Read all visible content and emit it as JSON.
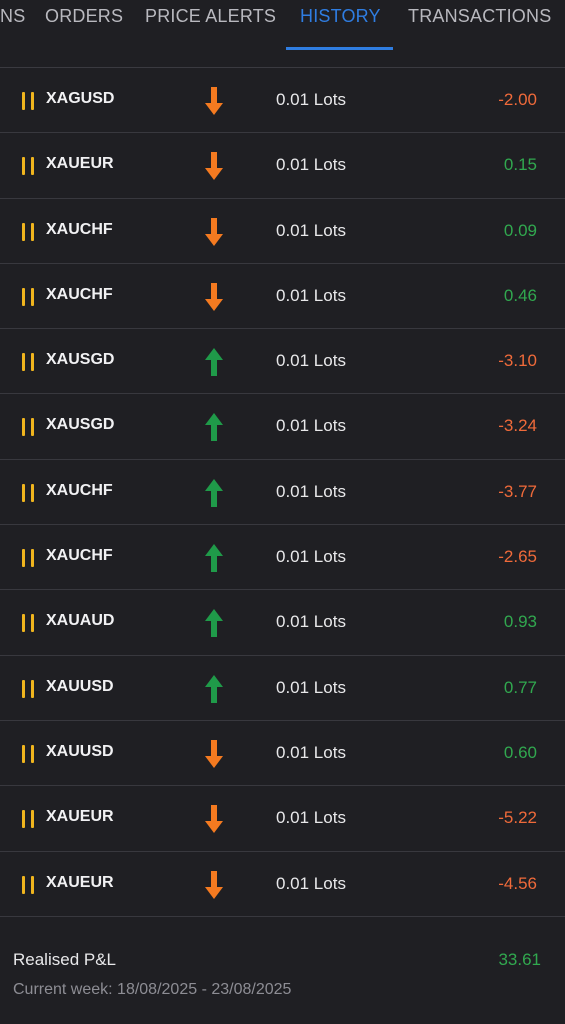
{
  "tabs": [
    {
      "label": "NS",
      "active": false
    },
    {
      "label": "ORDERS",
      "active": false
    },
    {
      "label": "PRICE ALERTS",
      "active": false
    },
    {
      "label": "HISTORY",
      "active": true
    },
    {
      "label": "TRANSACTIONS",
      "active": false
    }
  ],
  "colors": {
    "accent": "#2f7de1",
    "negative": "#ef6a3a",
    "positive": "#31a84f",
    "marker": "#f0b51e",
    "sell_arrow": "#f47a20",
    "buy_arrow": "#1f9a49"
  },
  "trades": [
    {
      "symbol": "XAGUSD",
      "direction": "down",
      "lots": "0.01 Lots",
      "pnl": "-2.00"
    },
    {
      "symbol": "XAUEUR",
      "direction": "down",
      "lots": "0.01 Lots",
      "pnl": "0.15"
    },
    {
      "symbol": "XAUCHF",
      "direction": "down",
      "lots": "0.01 Lots",
      "pnl": "0.09"
    },
    {
      "symbol": "XAUCHF",
      "direction": "down",
      "lots": "0.01 Lots",
      "pnl": "0.46"
    },
    {
      "symbol": "XAUSGD",
      "direction": "up",
      "lots": "0.01 Lots",
      "pnl": "-3.10"
    },
    {
      "symbol": "XAUSGD",
      "direction": "up",
      "lots": "0.01 Lots",
      "pnl": "-3.24"
    },
    {
      "symbol": "XAUCHF",
      "direction": "up",
      "lots": "0.01 Lots",
      "pnl": "-3.77"
    },
    {
      "symbol": "XAUCHF",
      "direction": "up",
      "lots": "0.01 Lots",
      "pnl": "-2.65"
    },
    {
      "symbol": "XAUAUD",
      "direction": "up",
      "lots": "0.01 Lots",
      "pnl": "0.93"
    },
    {
      "symbol": "XAUUSD",
      "direction": "up",
      "lots": "0.01 Lots",
      "pnl": "0.77"
    },
    {
      "symbol": "XAUUSD",
      "direction": "down",
      "lots": "0.01 Lots",
      "pnl": "0.60"
    },
    {
      "symbol": "XAUEUR",
      "direction": "down",
      "lots": "0.01 Lots",
      "pnl": "-5.22"
    },
    {
      "symbol": "XAUEUR",
      "direction": "down",
      "lots": "0.01 Lots",
      "pnl": "-4.56"
    }
  ],
  "footer": {
    "realised_label": "Realised P&L",
    "realised_value": "33.61",
    "week_label": "Current week: 18/08/2025 - 23/08/2025"
  }
}
